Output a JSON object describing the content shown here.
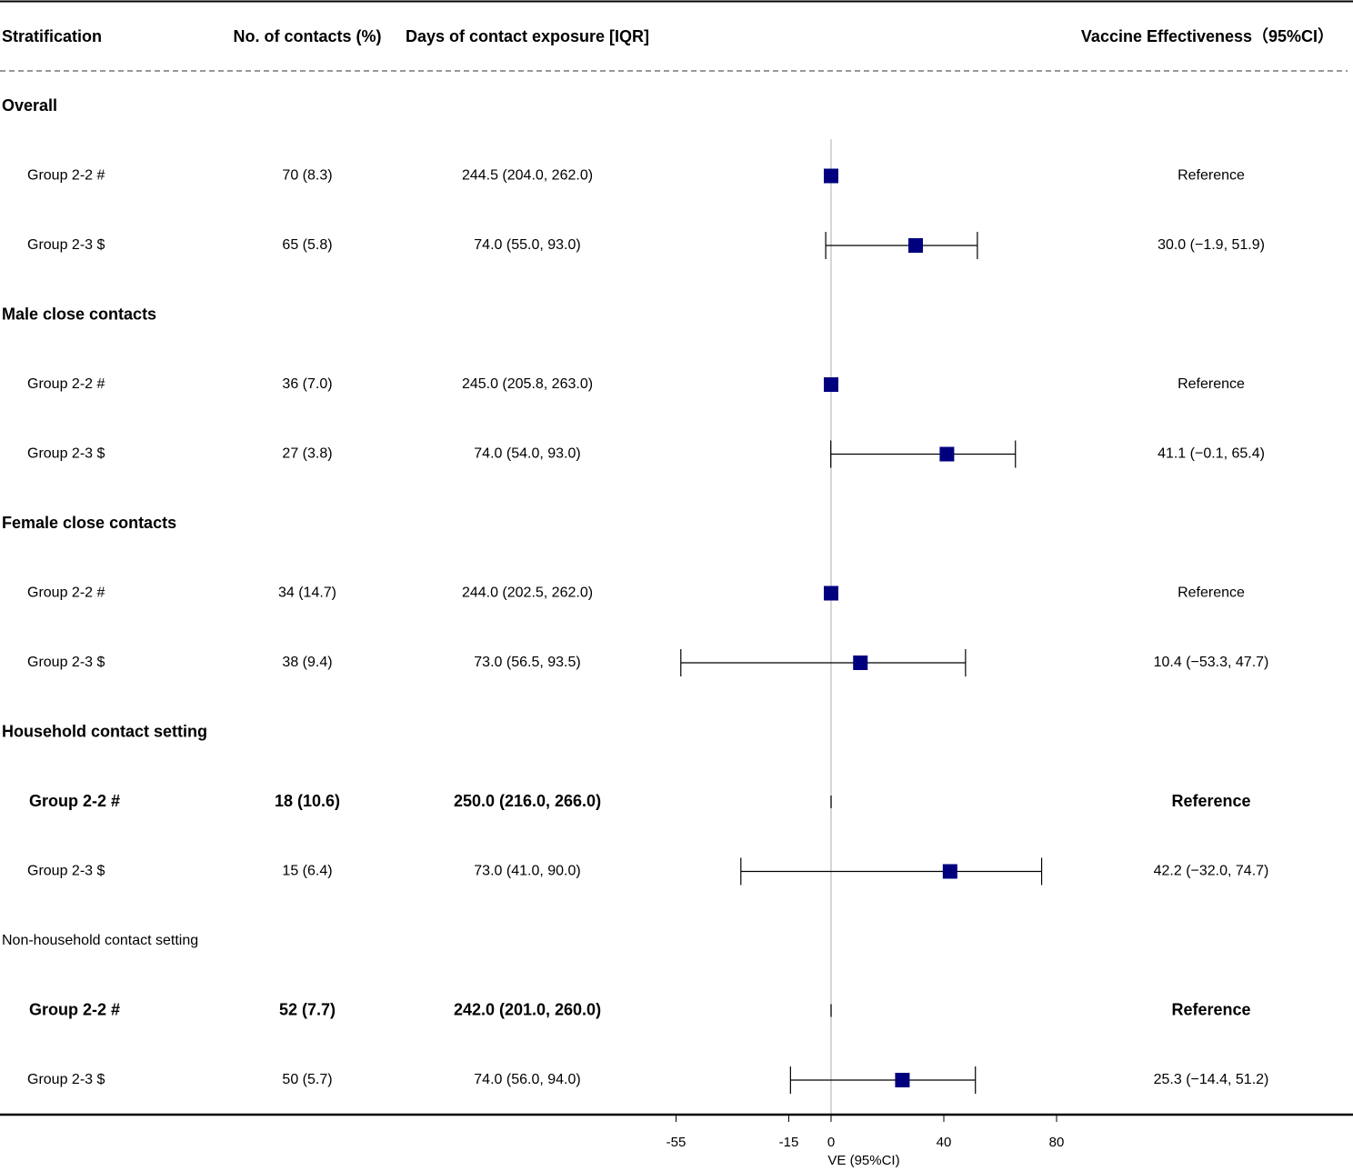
{
  "chart_data": {
    "type": "forest",
    "headers": {
      "stratification": "Stratification",
      "contacts": "No. of contacts (%)",
      "days": "Days of contact exposure [IQR]",
      "ve": "Vaccine Effectiveness（95%CI）"
    },
    "xlabel": "VE (95%CI)",
    "xlim": [
      -55,
      80
    ],
    "xticks": [
      -55,
      -15,
      0,
      40,
      80
    ],
    "reference_line": 0,
    "marker_color": "#00007f",
    "sections": [
      {
        "title": "Overall",
        "bold": true,
        "rows": [
          {
            "group": "Group 2-2 #",
            "contacts": "70 (8.3)",
            "days": "244.5 (204.0, 262.0)",
            "ve_text": "Reference",
            "ve": 0,
            "lo": null,
            "hi": null,
            "marker": true,
            "bold": false
          },
          {
            "group": "Group 2-3 $",
            "contacts": "65 (5.8)",
            "days": "74.0 (55.0, 93.0)",
            "ve_text": "30.0 (−1.9, 51.9)",
            "ve": 30.0,
            "lo": -1.9,
            "hi": 51.9,
            "marker": true,
            "bold": false
          }
        ]
      },
      {
        "title": "Male close contacts",
        "bold": true,
        "rows": [
          {
            "group": "Group 2-2 #",
            "contacts": "36 (7.0)",
            "days": "245.0 (205.8, 263.0)",
            "ve_text": "Reference",
            "ve": 0,
            "lo": null,
            "hi": null,
            "marker": true,
            "bold": false
          },
          {
            "group": "Group 2-3 $",
            "contacts": "27 (3.8)",
            "days": "74.0 (54.0, 93.0)",
            "ve_text": "41.1 (−0.1, 65.4)",
            "ve": 41.1,
            "lo": -0.1,
            "hi": 65.4,
            "marker": true,
            "bold": false
          }
        ]
      },
      {
        "title": "Female close contacts",
        "bold": true,
        "rows": [
          {
            "group": "Group 2-2 #",
            "contacts": "34 (14.7)",
            "days": "244.0 (202.5, 262.0)",
            "ve_text": "Reference",
            "ve": 0,
            "lo": null,
            "hi": null,
            "marker": true,
            "bold": false
          },
          {
            "group": "Group 2-3 $",
            "contacts": "38 (9.4)",
            "days": "73.0 (56.5, 93.5)",
            "ve_text": "10.4 (−53.3, 47.7)",
            "ve": 10.4,
            "lo": -53.3,
            "hi": 47.7,
            "marker": true,
            "bold": false
          }
        ]
      },
      {
        "title": "Household contact setting",
        "bold": true,
        "rows": [
          {
            "group": "Group 2-2 #",
            "contacts": "18 (10.6)",
            "days": "250.0 (216.0, 266.0)",
            "ve_text": "Reference",
            "ve": 0,
            "lo": null,
            "hi": null,
            "marker": false,
            "bold": true
          },
          {
            "group": "Group 2-3 $",
            "contacts": "15 (6.4)",
            "days": "73.0 (41.0, 90.0)",
            "ve_text": "42.2 (−32.0, 74.7)",
            "ve": 42.2,
            "lo": -32.0,
            "hi": 74.7,
            "marker": true,
            "bold": false
          }
        ]
      },
      {
        "title": "Non-household contact setting",
        "bold": false,
        "rows": [
          {
            "group": "Group 2-2 #",
            "contacts": "52 (7.7)",
            "days": "242.0 (201.0, 260.0)",
            "ve_text": "Reference",
            "ve": 0,
            "lo": null,
            "hi": null,
            "marker": false,
            "bold": true
          },
          {
            "group": "Group 2-3 $",
            "contacts": "50 (5.7)",
            "days": "74.0 (56.0, 94.0)",
            "ve_text": "25.3 (−14.4, 51.2)",
            "ve": 25.3,
            "lo": -14.4,
            "hi": 51.2,
            "marker": true,
            "bold": false
          }
        ]
      }
    ]
  }
}
